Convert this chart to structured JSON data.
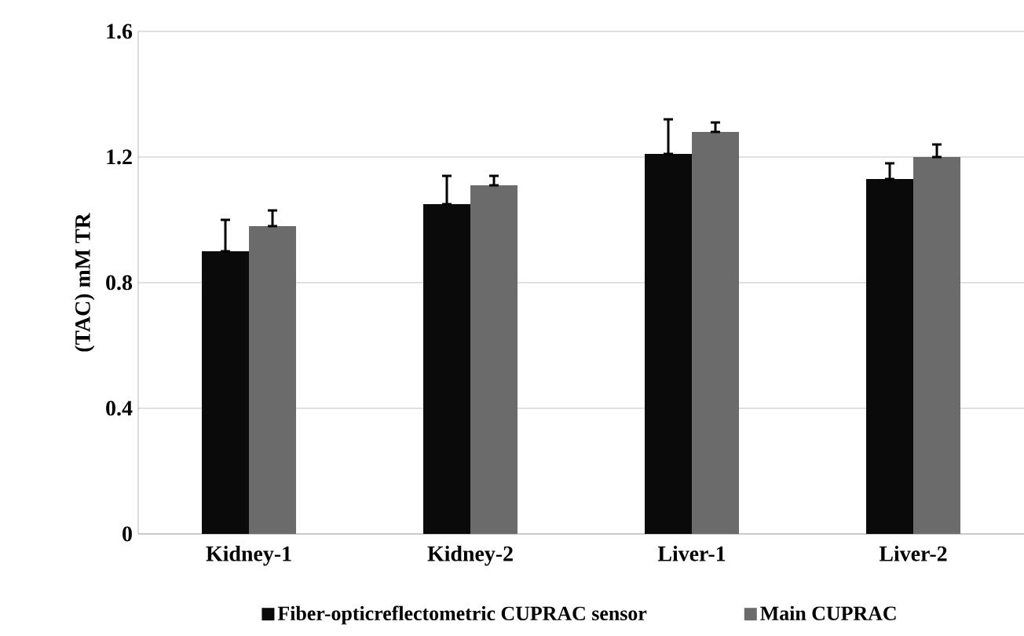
{
  "chart_data": {
    "type": "bar",
    "ylabel": "(TAC) mM TR",
    "categories": [
      "Kidney-1",
      "Kidney-2",
      "Liver-1",
      "Liver-2"
    ],
    "series": [
      {
        "name": "Fiber-opticreflectometric CUPRAC sensor",
        "color": "#0a0a0a",
        "values": [
          0.9,
          1.05,
          1.21,
          1.13
        ],
        "errors": [
          [
            0.9,
            1.0
          ],
          [
            1.05,
            1.14
          ],
          [
            1.21,
            1.32
          ],
          [
            1.13,
            1.18
          ]
        ]
      },
      {
        "name": "Main CUPRAC",
        "color": "#6b6b6b",
        "values": [
          0.98,
          1.11,
          1.28,
          1.2
        ],
        "errors": [
          [
            0.98,
            1.03
          ],
          [
            1.11,
            1.14
          ],
          [
            1.28,
            1.31
          ],
          [
            1.2,
            1.24
          ]
        ]
      }
    ],
    "ylim": [
      0,
      1.6
    ],
    "yticks": [
      0,
      0.4,
      0.8,
      1.2,
      1.6
    ],
    "grid": "y",
    "legend": "bottom"
  }
}
